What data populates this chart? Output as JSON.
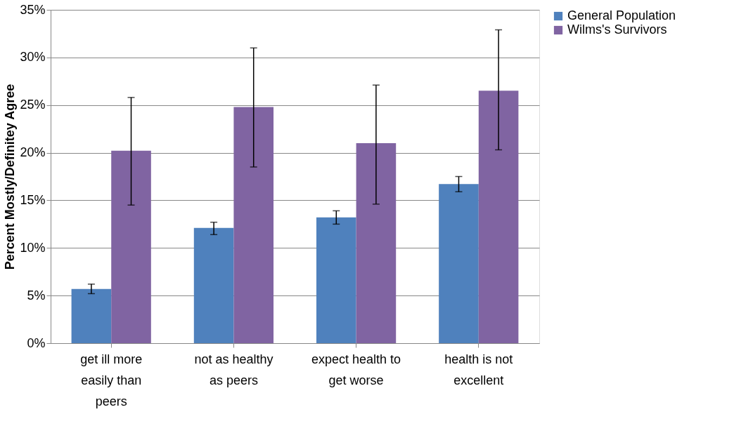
{
  "chart_data": {
    "type": "bar",
    "ylabel": "Percent Mostly/Definitey Agree",
    "categories": [
      "get ill more easily than peers",
      "not as healthy as peers",
      "expect health to get worse",
      "health is not excellent"
    ],
    "series": [
      {
        "name": "General Population",
        "color": "#4f81bd",
        "values": [
          5.7,
          12.1,
          13.2,
          16.7
        ],
        "errors": [
          [
            5.2,
            6.2
          ],
          [
            11.4,
            12.7
          ],
          [
            12.5,
            13.9
          ],
          [
            15.9,
            17.5
          ]
        ]
      },
      {
        "name": "Wilms's Survivors",
        "color": "#8064a2",
        "values": [
          20.2,
          24.8,
          21.0,
          26.5
        ],
        "errors": [
          [
            14.5,
            25.8
          ],
          [
            18.5,
            31.0
          ],
          [
            14.6,
            27.1
          ],
          [
            20.3,
            32.9
          ]
        ]
      }
    ],
    "ylim": [
      0,
      35
    ],
    "yticks": [
      {
        "value": 0,
        "label": "0%"
      },
      {
        "value": 5,
        "label": "5%"
      },
      {
        "value": 10,
        "label": "10%"
      },
      {
        "value": 15,
        "label": "15%"
      },
      {
        "value": 20,
        "label": "20%"
      },
      {
        "value": 25,
        "label": "25%"
      },
      {
        "value": 30,
        "label": "30%"
      },
      {
        "value": 35,
        "label": "35%"
      }
    ],
    "grid": "y",
    "legend": "right"
  }
}
